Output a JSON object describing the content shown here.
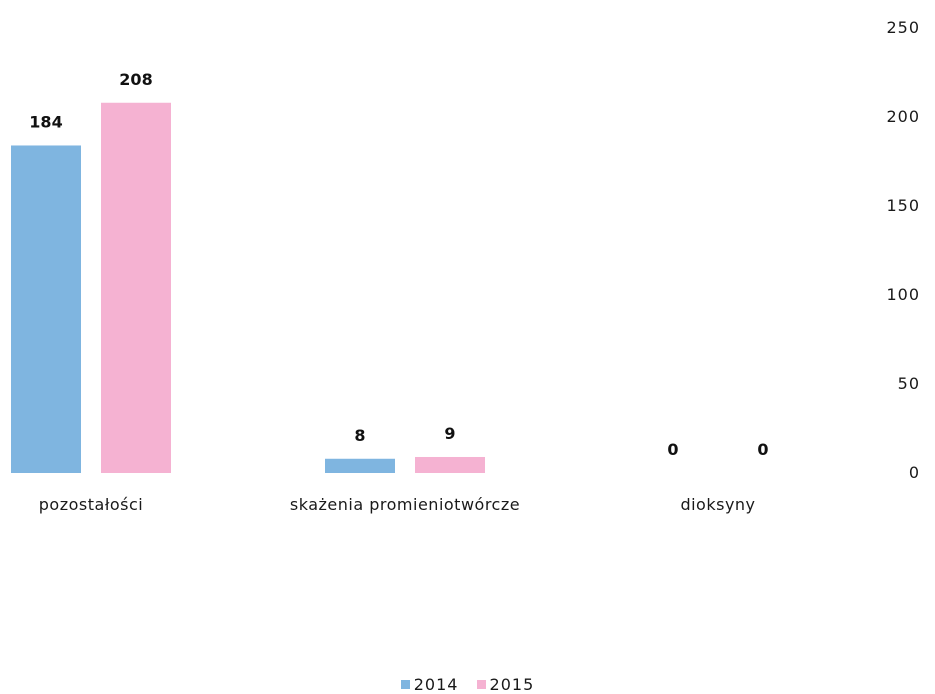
{
  "chart_data": {
    "type": "bar",
    "categories": [
      "pozostałości",
      "skażenia promieniotwórcze",
      "dioksyny"
    ],
    "series": [
      {
        "name": "2014",
        "values": [
          184,
          8,
          0
        ],
        "color": "#7fb5e0"
      },
      {
        "name": "2015",
        "values": [
          208,
          9,
          0
        ],
        "color": "#f5b2d2"
      }
    ],
    "yticks": [
      "0",
      "50",
      "100",
      "150",
      "200",
      "250"
    ],
    "ylim": [
      0,
      250
    ],
    "y_axis_position": "right",
    "grid": false,
    "legend_position": "bottom"
  }
}
